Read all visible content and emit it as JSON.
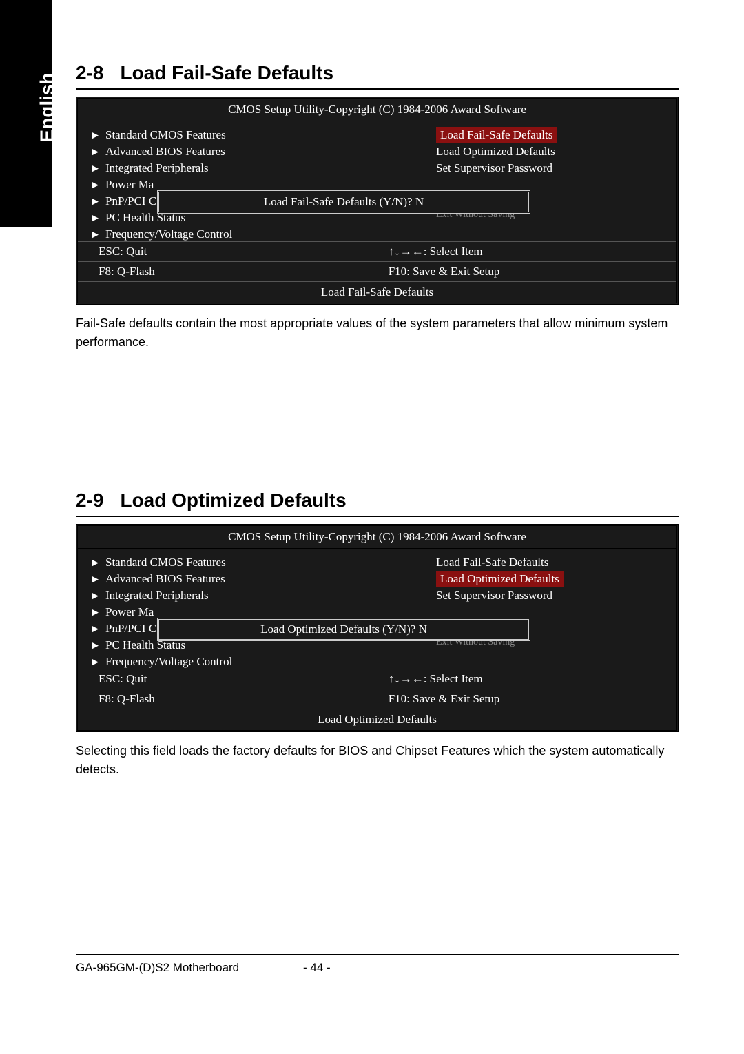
{
  "sidebar": {
    "language": "English"
  },
  "section28": {
    "num": "2-8",
    "title": "Load Fail-Safe Defaults",
    "bios": {
      "title": "CMOS Setup Utility-Copyright (C) 1984-2006 Award Software",
      "left": [
        "Standard CMOS Features",
        "Advanced BIOS Features",
        "Integrated Peripherals",
        "Power Ma",
        "PnP/PCI C",
        "PC Health Status",
        "Frequency/Voltage Control"
      ],
      "right": [
        "Load Fail-Safe Defaults",
        "Load Optimized Defaults",
        "Set Supervisor Password"
      ],
      "highlight": "Load Fail-Safe Defaults",
      "dialog": "Load Fail-Safe Defaults (Y/N)? N",
      "obscured": "Exit Without Saving",
      "footer_esc": "ESC: Quit",
      "footer_select": "↑↓→←: Select Item",
      "footer_f8": "F8: Q-Flash",
      "footer_f10": "F10: Save & Exit Setup",
      "help": "Load Fail-Safe Defaults"
    },
    "body": "Fail-Safe defaults contain the most appropriate values of the system parameters that allow minimum system performance."
  },
  "section29": {
    "num": "2-9",
    "title": "Load Optimized Defaults",
    "bios": {
      "title": "CMOS Setup Utility-Copyright (C) 1984-2006 Award Software",
      "left": [
        "Standard CMOS Features",
        "Advanced BIOS Features",
        "Integrated Peripherals",
        "Power Ma",
        "PnP/PCI C",
        "PC Health Status",
        "Frequency/Voltage Control"
      ],
      "right": [
        "Load Fail-Safe Defaults",
        "Load Optimized Defaults",
        "Set Supervisor Password"
      ],
      "highlight": "Load Optimized Defaults",
      "dialog": "Load Optimized Defaults (Y/N)? N",
      "obscured": "Exit Without Saving",
      "footer_esc": "ESC: Quit",
      "footer_select": "↑↓→←: Select Item",
      "footer_f8": "F8: Q-Flash",
      "footer_f10": "F10: Save & Exit Setup",
      "help": "Load Optimized Defaults"
    },
    "body": "Selecting this field loads the factory defaults for BIOS and Chipset Features which the system automatically detects."
  },
  "footer": {
    "mb": "GA-965GM-(D)S2 Motherboard",
    "pn": "- 44 -"
  },
  "colors": {
    "bios_bg": "#1a1a1a",
    "highlight_bg": "#8a1010",
    "text": "#ffffff"
  }
}
